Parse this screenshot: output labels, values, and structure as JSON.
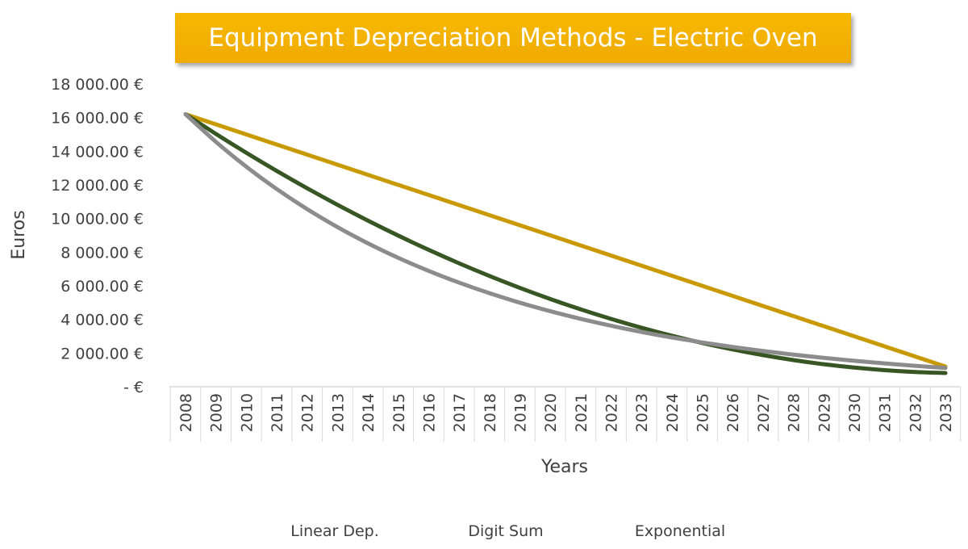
{
  "chart_data": {
    "type": "line",
    "title": "Equipment Depreciation Methods - Electric Oven",
    "xlabel": "Years",
    "ylabel": "Euros",
    "x": [
      "2008",
      "2009",
      "2010",
      "2011",
      "2012",
      "2013",
      "2014",
      "2015",
      "2016",
      "2017",
      "2018",
      "2019",
      "2020",
      "2021",
      "2022",
      "2023",
      "2024",
      "2025",
      "2026",
      "2027",
      "2028",
      "2029",
      "2030",
      "2031",
      "2032",
      "2033"
    ],
    "ylim": [
      0,
      18000
    ],
    "yticks": [
      0,
      2000,
      4000,
      6000,
      8000,
      10000,
      12000,
      14000,
      16000,
      18000
    ],
    "ytick_labels": [
      "-  €",
      "2 000.00 €",
      "4 000.00 €",
      "6 000.00 €",
      "8 000.00 €",
      "10 000.00 €",
      "12 000.00 €",
      "14 000.00 €",
      "16 000.00 €",
      "18 000.00 €"
    ],
    "grid": false,
    "legend_position": "bottom",
    "series": [
      {
        "name": "Linear Dep.",
        "color": "#c99a00",
        "values": [
          16200,
          15600,
          15000,
          14400,
          13800,
          13200,
          12600,
          12000,
          11400,
          10800,
          10200,
          9600,
          9000,
          8400,
          7800,
          7200,
          6600,
          6000,
          5400,
          4800,
          4200,
          3600,
          3000,
          2400,
          1800,
          1200
        ]
      },
      {
        "name": "Digit Sum",
        "color": "#375623",
        "values": [
          16200,
          15031,
          13908,
          12831,
          11800,
          10815,
          9877,
          8985,
          8138,
          7338,
          6585,
          5877,
          5215,
          4600,
          4031,
          3508,
          3031,
          2600,
          2215,
          1877,
          1585,
          1338,
          1138,
          985,
          877,
          815
        ]
      },
      {
        "name": "Exponential",
        "color": "#8c8c8c",
        "values": [
          16200,
          14557,
          13081,
          11754,
          10562,
          9491,
          8528,
          7663,
          6886,
          6188,
          5560,
          4996,
          4490,
          4034,
          3625,
          3258,
          2927,
          2630,
          2364,
          2124,
          1908,
          1715,
          1541,
          1385,
          1244,
          1118
        ]
      }
    ]
  }
}
